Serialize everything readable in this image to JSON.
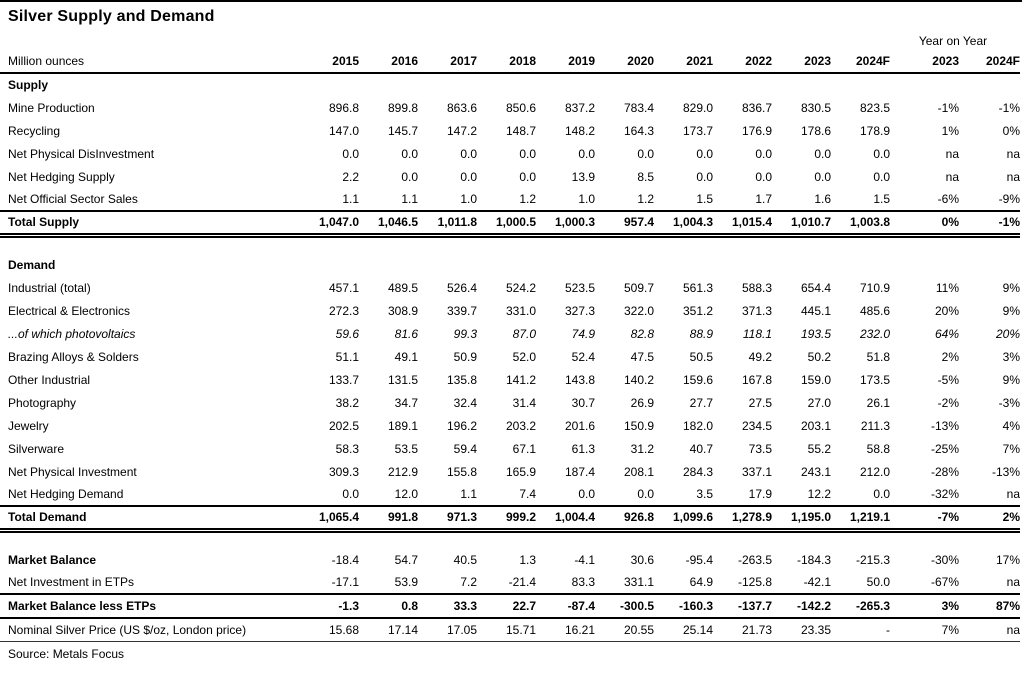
{
  "title": "Silver Supply and Demand",
  "colors": {
    "background": "#ffffff",
    "text": "#000000",
    "rule": "#000000"
  },
  "header": {
    "unit_label": "Million ounces",
    "yoy_label": "Year on Year",
    "years": [
      "2015",
      "2016",
      "2017",
      "2018",
      "2019",
      "2020",
      "2021",
      "2022",
      "2023",
      "2024F"
    ],
    "yoy_years": [
      "2023",
      "2024F"
    ]
  },
  "rows": [
    {
      "label": "Supply",
      "style": "section",
      "values": []
    },
    {
      "label": "Mine Production",
      "style": "normal",
      "values": [
        "896.8",
        "899.8",
        "863.6",
        "850.6",
        "837.2",
        "783.4",
        "829.0",
        "836.7",
        "830.5",
        "823.5",
        "-1%",
        "-1%"
      ]
    },
    {
      "label": "Recycling",
      "style": "normal",
      "values": [
        "147.0",
        "145.7",
        "147.2",
        "148.7",
        "148.2",
        "164.3",
        "173.7",
        "176.9",
        "178.6",
        "178.9",
        "1%",
        "0%"
      ]
    },
    {
      "label": "Net Physical DisInvestment",
      "style": "normal",
      "values": [
        "0.0",
        "0.0",
        "0.0",
        "0.0",
        "0.0",
        "0.0",
        "0.0",
        "0.0",
        "0.0",
        "0.0",
        "na",
        "na"
      ]
    },
    {
      "label": "Net Hedging Supply",
      "style": "normal",
      "values": [
        "2.2",
        "0.0",
        "0.0",
        "0.0",
        "13.9",
        "8.5",
        "0.0",
        "0.0",
        "0.0",
        "0.0",
        "na",
        "na"
      ]
    },
    {
      "label": "Net Official Sector Sales",
      "style": "normal",
      "values": [
        "1.1",
        "1.1",
        "1.0",
        "1.2",
        "1.0",
        "1.2",
        "1.5",
        "1.7",
        "1.6",
        "1.5",
        "-6%",
        "-9%"
      ]
    },
    {
      "label": "Total Supply",
      "style": "total",
      "values": [
        "1,047.0",
        "1,046.5",
        "1,011.8",
        "1,000.5",
        "1,000.3",
        "957.4",
        "1,004.3",
        "1,015.4",
        "1,010.7",
        "1,003.8",
        "0%",
        "-1%"
      ]
    },
    {
      "label": "",
      "style": "spacer",
      "values": []
    },
    {
      "label": "Demand",
      "style": "section",
      "values": []
    },
    {
      "label": "Industrial (total)",
      "style": "normal",
      "values": [
        "457.1",
        "489.5",
        "526.4",
        "524.2",
        "523.5",
        "509.7",
        "561.3",
        "588.3",
        "654.4",
        "710.9",
        "11%",
        "9%"
      ]
    },
    {
      "label": "Electrical & Electronics",
      "style": "normal",
      "indent": true,
      "values": [
        "272.3",
        "308.9",
        "339.7",
        "331.0",
        "327.3",
        "322.0",
        "351.2",
        "371.3",
        "445.1",
        "485.6",
        "20%",
        "9%"
      ]
    },
    {
      "label": "...of which photovoltaics",
      "style": "italic",
      "indent": true,
      "values": [
        "59.6",
        "81.6",
        "99.3",
        "87.0",
        "74.9",
        "82.8",
        "88.9",
        "118.1",
        "193.5",
        "232.0",
        "64%",
        "20%"
      ]
    },
    {
      "label": "Brazing Alloys & Solders",
      "style": "normal",
      "indent": true,
      "values": [
        "51.1",
        "49.1",
        "50.9",
        "52.0",
        "52.4",
        "47.5",
        "50.5",
        "49.2",
        "50.2",
        "51.8",
        "2%",
        "3%"
      ]
    },
    {
      "label": "Other Industrial",
      "style": "normal",
      "indent": true,
      "values": [
        "133.7",
        "131.5",
        "135.8",
        "141.2",
        "143.8",
        "140.2",
        "159.6",
        "167.8",
        "159.0",
        "173.5",
        "-5%",
        "9%"
      ]
    },
    {
      "label": "Photography",
      "style": "normal",
      "values": [
        "38.2",
        "34.7",
        "32.4",
        "31.4",
        "30.7",
        "26.9",
        "27.7",
        "27.5",
        "27.0",
        "26.1",
        "-2%",
        "-3%"
      ]
    },
    {
      "label": "Jewelry",
      "style": "normal",
      "values": [
        "202.5",
        "189.1",
        "196.2",
        "203.2",
        "201.6",
        "150.9",
        "182.0",
        "234.5",
        "203.1",
        "211.3",
        "-13%",
        "4%"
      ]
    },
    {
      "label": "Silverware",
      "style": "normal",
      "values": [
        "58.3",
        "53.5",
        "59.4",
        "67.1",
        "61.3",
        "31.2",
        "40.7",
        "73.5",
        "55.2",
        "58.8",
        "-25%",
        "7%"
      ]
    },
    {
      "label": "Net Physical Investment",
      "style": "normal",
      "values": [
        "309.3",
        "212.9",
        "155.8",
        "165.9",
        "187.4",
        "208.1",
        "284.3",
        "337.1",
        "243.1",
        "212.0",
        "-28%",
        "-13%"
      ]
    },
    {
      "label": "Net Hedging Demand",
      "style": "normal",
      "values": [
        "0.0",
        "12.0",
        "1.1",
        "7.4",
        "0.0",
        "0.0",
        "3.5",
        "17.9",
        "12.2",
        "0.0",
        "-32%",
        "na"
      ]
    },
    {
      "label": "Total Demand",
      "style": "total",
      "values": [
        "1,065.4",
        "991.8",
        "971.3",
        "999.2",
        "1,004.4",
        "926.8",
        "1,099.6",
        "1,278.9",
        "1,195.0",
        "1,219.1",
        "-7%",
        "2%"
      ]
    },
    {
      "label": "",
      "style": "spacer",
      "values": []
    },
    {
      "label": "Market Balance",
      "style": "bold-label",
      "values": [
        "-18.4",
        "54.7",
        "40.5",
        "1.3",
        "-4.1",
        "30.6",
        "-95.4",
        "-263.5",
        "-184.3",
        "-215.3",
        "-30%",
        "17%"
      ]
    },
    {
      "label": "Net Investment in ETPs",
      "style": "normal",
      "values": [
        "-17.1",
        "53.9",
        "7.2",
        "-21.4",
        "83.3",
        "331.1",
        "64.9",
        "-125.8",
        "-42.1",
        "50.0",
        "-67%",
        "na"
      ]
    },
    {
      "label": "Market Balance less ETPs",
      "style": "total-single",
      "values": [
        "-1.3",
        "0.8",
        "33.3",
        "22.7",
        "-87.4",
        "-300.5",
        "-160.3",
        "-137.7",
        "-142.2",
        "-265.3",
        "3%",
        "87%"
      ]
    },
    {
      "label": "Nominal Silver Price (US $/oz, London price)",
      "style": "price",
      "values": [
        "15.68",
        "17.14",
        "17.05",
        "15.71",
        "16.21",
        "20.55",
        "25.14",
        "21.73",
        "23.35",
        "-",
        "7%",
        "na"
      ]
    }
  ],
  "source": "Source: Metals Focus"
}
